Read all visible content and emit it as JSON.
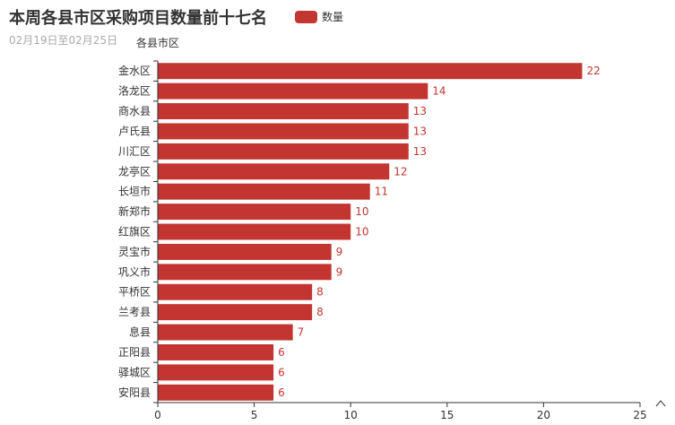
{
  "title": "本周各县市区采购项目数量前十七名",
  "subtitle": "02月19日至02月25日",
  "colors": {
    "bar": "#c23531",
    "axis": "#333333",
    "label": "#c23531"
  },
  "toolbox_icon": "chevron-up-icon",
  "chart_data": {
    "type": "bar",
    "orientation": "horizontal",
    "title": "本周各县市区采购项目数量前十七名",
    "subtitle": "02月19日至02月25日",
    "ylabel": "各县市区",
    "xlabel": "",
    "xlim": [
      0,
      25
    ],
    "xticks": [
      0,
      5,
      10,
      15,
      20,
      25
    ],
    "grid": false,
    "legend_position": "top",
    "categories": [
      "金水区",
      "洛龙区",
      "商水县",
      "卢氏县",
      "川汇区",
      "龙亭区",
      "长垣市",
      "新郑市",
      "红旗区",
      "灵宝市",
      "巩义市",
      "平桥区",
      "兰考县",
      "息县",
      "正阳县",
      "驿城区",
      "安阳县"
    ],
    "series": [
      {
        "name": "数量",
        "values": [
          22,
          14,
          13,
          13,
          13,
          12,
          11,
          10,
          10,
          9,
          9,
          8,
          8,
          7,
          6,
          6,
          6
        ]
      }
    ]
  }
}
